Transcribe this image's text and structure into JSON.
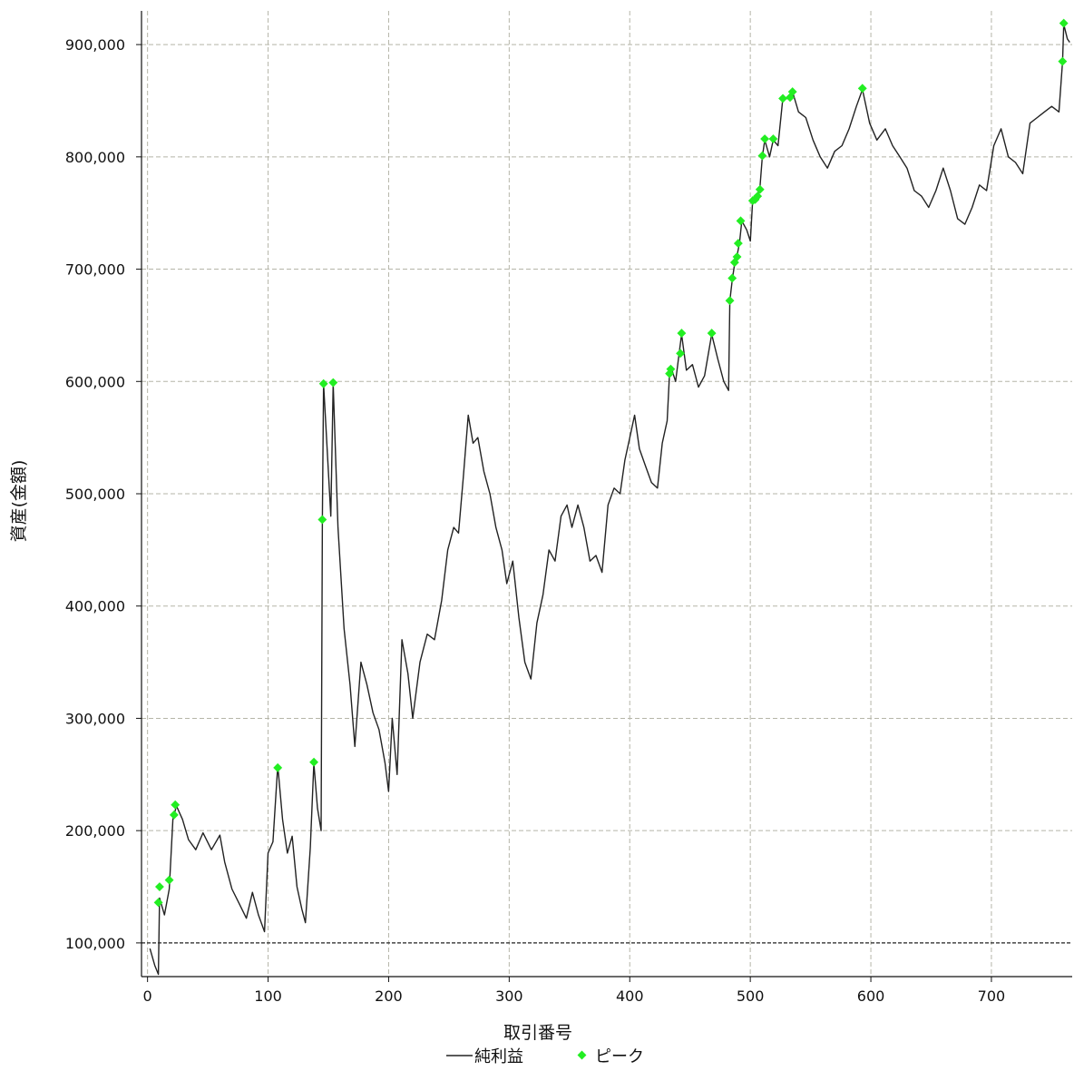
{
  "chart_data": {
    "type": "line",
    "title": "",
    "xlabel": "取引番号",
    "ylabel": "資産(金額)",
    "xlim": [
      -5,
      767
    ],
    "ylim": [
      70000,
      930000
    ],
    "x_ticks": [
      0,
      100,
      200,
      300,
      400,
      500,
      600,
      700
    ],
    "y_ticks": [
      100000,
      200000,
      300000,
      400000,
      500000,
      600000,
      700000,
      800000,
      900000
    ],
    "x_tick_labels": [
      "0",
      "100",
      "200",
      "300",
      "400",
      "500",
      "600",
      "700"
    ],
    "y_tick_labels": [
      "100,000",
      "200,000",
      "300,000",
      "400,000",
      "500,000",
      "600,000",
      "700,000",
      "800,000",
      "900,000"
    ],
    "grid": true,
    "reference_line": 100000,
    "legend_position": "bottom-center",
    "colors": {
      "line": "#222222",
      "peak": "#22ee22",
      "grid": "#b5b5a8",
      "reference": "#222222"
    },
    "series": [
      {
        "name": "純利益",
        "kind": "line",
        "points": [
          [
            2,
            95000
          ],
          [
            6,
            80000
          ],
          [
            9,
            72000
          ],
          [
            10,
            140000
          ],
          [
            14,
            125000
          ],
          [
            18,
            148000
          ],
          [
            21,
            210000
          ],
          [
            24,
            222000
          ],
          [
            29,
            210000
          ],
          [
            34,
            192000
          ],
          [
            40,
            183000
          ],
          [
            46,
            198000
          ],
          [
            53,
            183000
          ],
          [
            60,
            196000
          ],
          [
            64,
            172000
          ],
          [
            70,
            148000
          ],
          [
            76,
            135000
          ],
          [
            82,
            122000
          ],
          [
            87,
            145000
          ],
          [
            92,
            125000
          ],
          [
            97,
            110000
          ],
          [
            100,
            180000
          ],
          [
            104,
            190000
          ],
          [
            108,
            258000
          ],
          [
            112,
            210000
          ],
          [
            116,
            180000
          ],
          [
            120,
            195000
          ],
          [
            124,
            150000
          ],
          [
            128,
            130000
          ],
          [
            131,
            118000
          ],
          [
            135,
            185000
          ],
          [
            138,
            260000
          ],
          [
            141,
            220000
          ],
          [
            144,
            200000
          ],
          [
            145,
            478000
          ],
          [
            146,
            598000
          ],
          [
            148,
            560000
          ],
          [
            152,
            480000
          ],
          [
            154,
            598000
          ],
          [
            158,
            470000
          ],
          [
            163,
            380000
          ],
          [
            168,
            330000
          ],
          [
            172,
            275000
          ],
          [
            177,
            350000
          ],
          [
            182,
            330000
          ],
          [
            187,
            305000
          ],
          [
            192,
            290000
          ],
          [
            197,
            260000
          ],
          [
            200,
            235000
          ],
          [
            203,
            300000
          ],
          [
            207,
            250000
          ],
          [
            211,
            370000
          ],
          [
            216,
            340000
          ],
          [
            220,
            300000
          ],
          [
            226,
            350000
          ],
          [
            232,
            375000
          ],
          [
            238,
            370000
          ],
          [
            244,
            405000
          ],
          [
            249,
            450000
          ],
          [
            254,
            470000
          ],
          [
            258,
            465000
          ],
          [
            262,
            515000
          ],
          [
            266,
            570000
          ],
          [
            270,
            545000
          ],
          [
            274,
            550000
          ],
          [
            279,
            520000
          ],
          [
            284,
            500000
          ],
          [
            289,
            470000
          ],
          [
            294,
            450000
          ],
          [
            298,
            420000
          ],
          [
            303,
            440000
          ],
          [
            308,
            390000
          ],
          [
            313,
            350000
          ],
          [
            318,
            335000
          ],
          [
            323,
            385000
          ],
          [
            328,
            410000
          ],
          [
            333,
            450000
          ],
          [
            338,
            440000
          ],
          [
            343,
            480000
          ],
          [
            348,
            490000
          ],
          [
            352,
            470000
          ],
          [
            357,
            490000
          ],
          [
            362,
            470000
          ],
          [
            367,
            440000
          ],
          [
            372,
            445000
          ],
          [
            377,
            430000
          ],
          [
            382,
            490000
          ],
          [
            387,
            505000
          ],
          [
            392,
            500000
          ],
          [
            396,
            530000
          ],
          [
            400,
            550000
          ],
          [
            404,
            570000
          ],
          [
            408,
            540000
          ],
          [
            413,
            525000
          ],
          [
            418,
            510000
          ],
          [
            423,
            505000
          ],
          [
            427,
            545000
          ],
          [
            431,
            565000
          ],
          [
            433,
            607000
          ],
          [
            435,
            610000
          ],
          [
            438,
            600000
          ],
          [
            441,
            625000
          ],
          [
            443,
            642000
          ],
          [
            447,
            610000
          ],
          [
            452,
            615000
          ],
          [
            457,
            595000
          ],
          [
            462,
            605000
          ],
          [
            468,
            642000
          ],
          [
            473,
            620000
          ],
          [
            478,
            600000
          ],
          [
            482,
            592000
          ],
          [
            483,
            672000
          ],
          [
            485,
            690000
          ],
          [
            487,
            705000
          ],
          [
            489,
            712000
          ],
          [
            491,
            723000
          ],
          [
            493,
            743000
          ],
          [
            497,
            735000
          ],
          [
            500,
            725000
          ],
          [
            502,
            762000
          ],
          [
            504,
            765000
          ],
          [
            506,
            765000
          ],
          [
            508,
            773000
          ],
          [
            510,
            800000
          ],
          [
            512,
            815000
          ],
          [
            516,
            800000
          ],
          [
            519,
            815000
          ],
          [
            523,
            810000
          ],
          [
            527,
            852000
          ],
          [
            531,
            852000
          ],
          [
            533,
            855000
          ],
          [
            535,
            858000
          ],
          [
            540,
            840000
          ],
          [
            546,
            835000
          ],
          [
            552,
            815000
          ],
          [
            558,
            800000
          ],
          [
            564,
            790000
          ],
          [
            570,
            805000
          ],
          [
            576,
            810000
          ],
          [
            582,
            825000
          ],
          [
            588,
            845000
          ],
          [
            593,
            860000
          ],
          [
            599,
            830000
          ],
          [
            605,
            815000
          ],
          [
            612,
            825000
          ],
          [
            618,
            810000
          ],
          [
            624,
            800000
          ],
          [
            630,
            790000
          ],
          [
            636,
            770000
          ],
          [
            642,
            765000
          ],
          [
            648,
            755000
          ],
          [
            654,
            770000
          ],
          [
            660,
            790000
          ],
          [
            666,
            770000
          ],
          [
            672,
            745000
          ],
          [
            678,
            740000
          ],
          [
            684,
            755000
          ],
          [
            690,
            775000
          ],
          [
            696,
            770000
          ],
          [
            702,
            810000
          ],
          [
            708,
            825000
          ],
          [
            714,
            800000
          ],
          [
            720,
            795000
          ],
          [
            726,
            785000
          ],
          [
            732,
            830000
          ],
          [
            738,
            835000
          ],
          [
            744,
            840000
          ],
          [
            750,
            845000
          ],
          [
            756,
            840000
          ],
          [
            759,
            885000
          ],
          [
            760,
            918000
          ],
          [
            763,
            905000
          ],
          [
            765,
            902000
          ]
        ]
      },
      {
        "name": "ピーク",
        "kind": "marker",
        "points": [
          [
            9,
            136000
          ],
          [
            10,
            150000
          ],
          [
            18,
            156000
          ],
          [
            22,
            214000
          ],
          [
            23,
            223000
          ],
          [
            108,
            256000
          ],
          [
            138,
            261000
          ],
          [
            145,
            477000
          ],
          [
            146,
            598000
          ],
          [
            154,
            599000
          ],
          [
            433,
            607000
          ],
          [
            434,
            611000
          ],
          [
            442,
            625000
          ],
          [
            443,
            643000
          ],
          [
            468,
            643000
          ],
          [
            483,
            672000
          ],
          [
            485,
            692000
          ],
          [
            487,
            706000
          ],
          [
            489,
            711000
          ],
          [
            490,
            723000
          ],
          [
            492,
            743000
          ],
          [
            502,
            761000
          ],
          [
            504,
            762000
          ],
          [
            506,
            765000
          ],
          [
            508,
            771000
          ],
          [
            510,
            801000
          ],
          [
            512,
            816000
          ],
          [
            519,
            816000
          ],
          [
            527,
            852000
          ],
          [
            533,
            853000
          ],
          [
            535,
            858000
          ],
          [
            593,
            861000
          ],
          [
            759,
            885000
          ],
          [
            760,
            919000
          ]
        ]
      }
    ]
  }
}
